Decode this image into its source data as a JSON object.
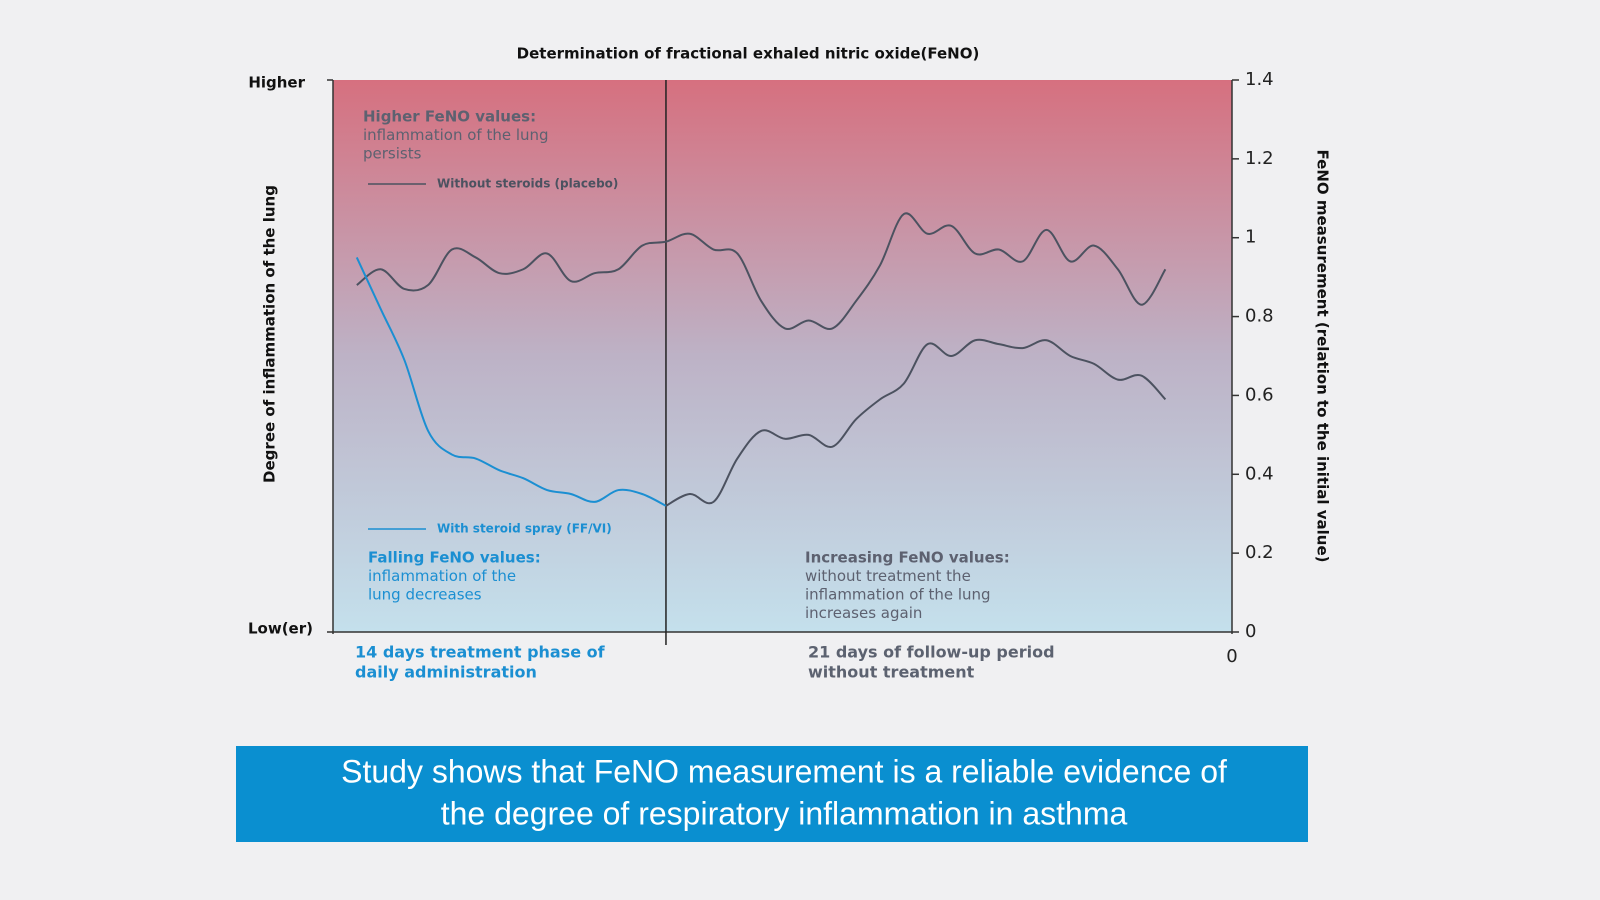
{
  "chart_data": {
    "type": "line",
    "title": "Determination of fractional exhaled nitric oxide(FeNO)",
    "y_label": "Degree of inflammation of the lung",
    "y_text_ticks": [
      "Higher",
      "Low(er)"
    ],
    "y2_label": "FeNO measurement (relation to the initial value)",
    "x": [
      1,
      2,
      3,
      4,
      5,
      6,
      7,
      8,
      9,
      10,
      11,
      12,
      13,
      14,
      15,
      16,
      17,
      18,
      19,
      20,
      21,
      22,
      23,
      24,
      25,
      26,
      27,
      28,
      29,
      30,
      31,
      32,
      33,
      34,
      35
    ],
    "xlim": [
      0,
      37.8
    ],
    "xticks": [
      {
        "value": 37.8,
        "label": "0"
      }
    ],
    "y2lim": [
      0,
      1.4
    ],
    "y2ticks": [
      0,
      0.2,
      0.4,
      0.6,
      0.8,
      1,
      1.2,
      1.4
    ],
    "phase_boundary": 14,
    "phases": [
      {
        "lines": [
          "14 days treatment phase of",
          "daily administration"
        ],
        "color": "#1b8fd2"
      },
      {
        "lines": [
          "21 days of follow-up period",
          "without treatment"
        ],
        "color": "#5c6270"
      }
    ],
    "annotations": [
      {
        "heading": "Higher FeNO values:",
        "lines": [
          "inflammation of the lung",
          "persists"
        ],
        "color": "#5d6170"
      },
      {
        "heading": "Falling FeNO values:",
        "lines": [
          "inflammation of the",
          "lung decreases"
        ],
        "color": "#1b8fd2"
      },
      {
        "heading": "Increasing FeNO values:",
        "lines": [
          "without treatment the",
          "inflammation of the lung",
          "increases again"
        ],
        "color": "#5d6170"
      }
    ],
    "series": [
      {
        "name": "Without steroids (placebo)",
        "color": "#4c5260",
        "axis": "y2",
        "values": [
          0.88,
          0.92,
          0.87,
          0.88,
          0.97,
          0.95,
          0.91,
          0.92,
          0.96,
          0.89,
          0.91,
          0.92,
          0.98,
          0.99,
          1.01,
          0.97,
          0.96,
          0.84,
          0.77,
          0.79,
          0.77,
          0.84,
          0.93,
          1.06,
          1.01,
          1.03,
          0.96,
          0.97,
          0.94,
          1.02,
          0.94,
          0.98,
          0.92,
          0.83,
          0.92
        ]
      },
      {
        "name": "With steroid spray (FF/VI)",
        "color": "#1b8fd2",
        "follow_up_color": "#4c5260",
        "axis": "y2",
        "values": [
          0.95,
          0.82,
          0.69,
          0.51,
          0.45,
          0.44,
          0.41,
          0.39,
          0.36,
          0.35,
          0.33,
          0.36,
          0.35,
          0.32,
          0.35,
          0.33,
          0.44,
          0.51,
          0.49,
          0.5,
          0.47,
          0.54,
          0.59,
          0.63,
          0.73,
          0.7,
          0.74,
          0.73,
          0.72,
          0.74,
          0.7,
          0.68,
          0.64,
          0.65,
          0.59
        ]
      }
    ]
  },
  "banner": {
    "lines": [
      "Study shows that FeNO measurement is a reliable evidence of",
      "the degree of respiratory inflammation in asthma"
    ],
    "color": "#0a8fd0"
  }
}
